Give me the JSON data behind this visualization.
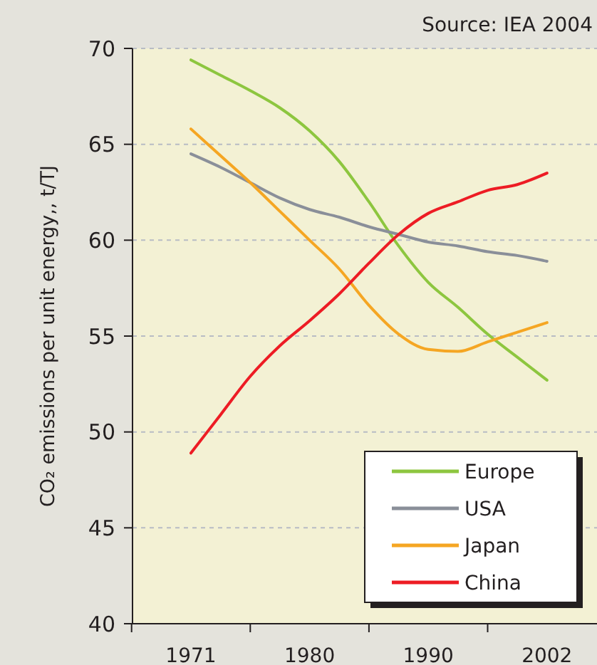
{
  "chart_data": {
    "type": "line",
    "ylabel": "CO₂ emissions per unit energy,, t/TJ",
    "annotations": [
      "Source: IEA 2004"
    ],
    "categories": [
      "1971",
      null,
      null,
      null,
      "1980",
      null,
      null,
      null,
      "1990",
      null,
      null,
      null,
      "2002"
    ],
    "series": [
      {
        "name": "Europe",
        "color": "#8dc63f",
        "values": [
          69.4,
          68.6,
          67.8,
          66.9,
          65.7,
          64.1,
          62.0,
          59.7,
          57.8,
          56.5,
          55.1,
          53.9,
          52.7
        ]
      },
      {
        "name": "USA",
        "color": "#8a8f99",
        "values": [
          64.5,
          63.8,
          63.0,
          62.2,
          61.6,
          61.2,
          60.7,
          60.3,
          59.9,
          59.7,
          59.4,
          59.2,
          58.9
        ]
      },
      {
        "name": "Japan",
        "color": "#f5a623",
        "values": [
          65.8,
          64.4,
          63.0,
          61.5,
          60.0,
          58.5,
          56.6,
          55.1,
          54.3,
          54.2,
          54.7,
          55.2,
          55.7
        ]
      },
      {
        "name": "China",
        "color": "#ed1c24",
        "values": [
          48.9,
          50.9,
          52.9,
          54.5,
          55.8,
          57.2,
          58.8,
          60.3,
          61.4,
          62.0,
          62.6,
          62.9,
          63.5
        ]
      }
    ],
    "ylim": [
      40,
      70
    ],
    "yticks": [
      40,
      45,
      50,
      55,
      60,
      65,
      70
    ],
    "grid": "y",
    "legend": "bottom right"
  }
}
